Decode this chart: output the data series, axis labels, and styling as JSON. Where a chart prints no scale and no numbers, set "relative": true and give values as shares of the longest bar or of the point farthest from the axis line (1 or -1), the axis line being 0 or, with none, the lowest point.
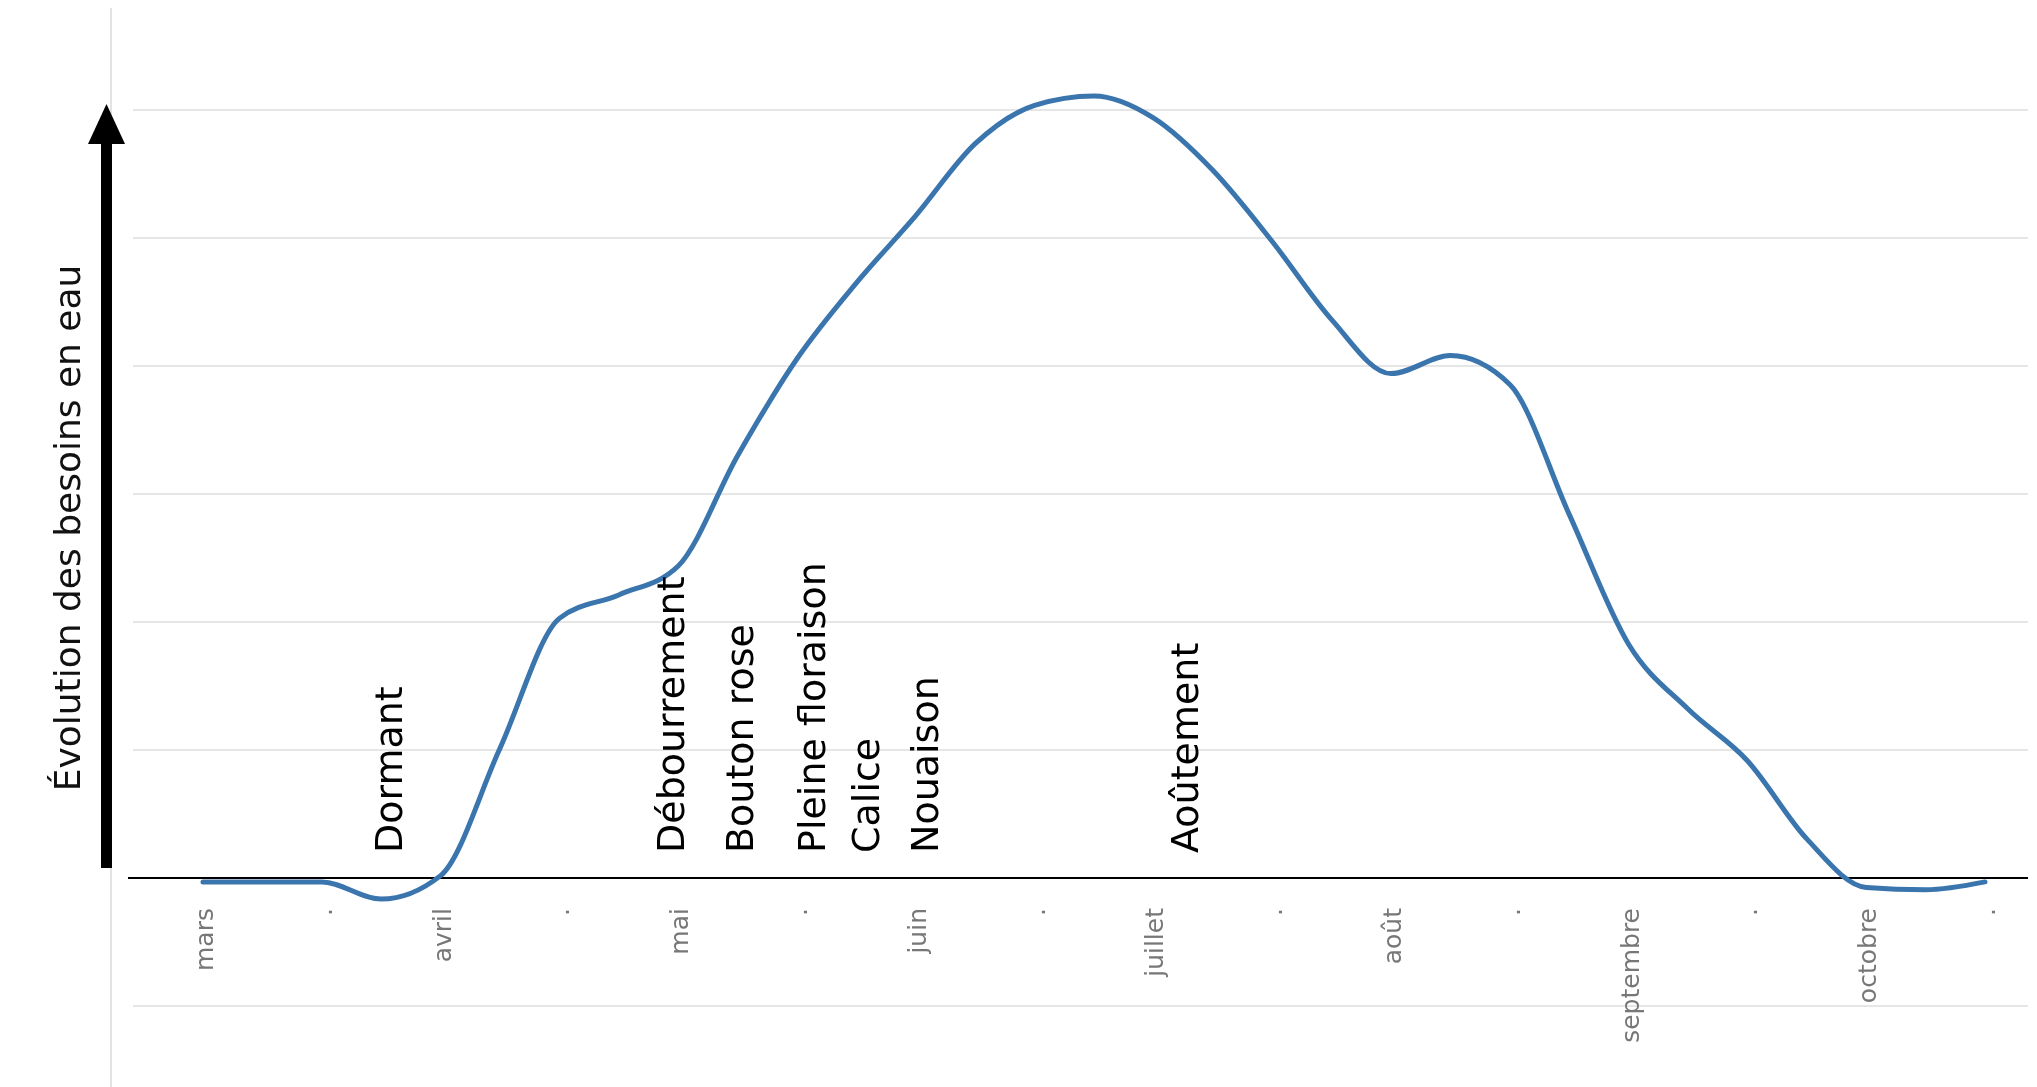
{
  "chart_data": {
    "type": "line",
    "ylabel": "Évolution des besoins en eau",
    "relative": true,
    "grid": "y",
    "marker": "none",
    "line_style": "solid",
    "categories": [
      "mars",
      null,
      ".",
      null,
      "avril",
      null,
      ".",
      null,
      "mai",
      null,
      ".",
      null,
      "juin",
      null,
      ".",
      null,
      "juillet",
      null,
      ".",
      null,
      "août",
      null,
      ".",
      null,
      "septembre",
      null,
      ".",
      null,
      "octobre",
      null,
      "."
    ],
    "series": [
      {
        "color": "#3a75ad",
        "values": [
          -0.005,
          -0.005,
          -0.005,
          -0.027,
          0.003,
          0.166,
          0.332,
          0.362,
          0.399,
          0.54,
          0.664,
          0.761,
          0.847,
          0.939,
          0.988,
          1.0,
          0.972,
          0.905,
          0.814,
          0.714,
          0.645,
          0.668,
          0.631,
          0.465,
          0.299,
          0.216,
          0.15,
          0.05,
          -0.012,
          -0.015,
          -0.005
        ]
      }
    ],
    "annotations": [
      "Dormant",
      "Débourrement",
      "Bouton rose",
      "Pleine floraison",
      "Calice",
      "Nouaison",
      "Aoûtement"
    ]
  }
}
